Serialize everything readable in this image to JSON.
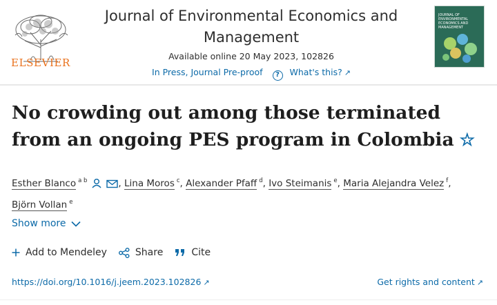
{
  "header": {
    "publisher": "ELSEVIER",
    "journal_title_line1": "Journal of Environmental Economics and",
    "journal_title_line2": "Management",
    "availability": "Available online 20 May 2023, 102826",
    "status": "In Press, Journal Pre-proof",
    "whats_this": "What's this?",
    "cover_title": "JOURNAL OF ENVIRONMENTAL ECONOMICS AND MANAGEMENT"
  },
  "article": {
    "title": "No crowding out among those terminated from an ongoing PES program in Colombia",
    "authors": [
      {
        "name": "Esther Blanco",
        "aff": "a b"
      },
      {
        "name": "Lina Moros",
        "aff": "c"
      },
      {
        "name": "Alexander Pfaff",
        "aff": "d"
      },
      {
        "name": "Ivo Steimanis",
        "aff": "e"
      },
      {
        "name": "Maria Alejandra Velez",
        "aff": "f"
      },
      {
        "name": "Björn Vollan",
        "aff": "e"
      }
    ],
    "show_more": "Show more"
  },
  "actions": {
    "mendeley": "Add to Mendeley",
    "share": "Share",
    "cite": "Cite"
  },
  "links": {
    "doi": "https://doi.org/10.1016/j.jeem.2023.102826",
    "rights": "Get rights and content"
  },
  "colors": {
    "accent": "#0c6aa8",
    "publisher_orange": "#e9711c",
    "cover_green": "#2b6b57"
  }
}
